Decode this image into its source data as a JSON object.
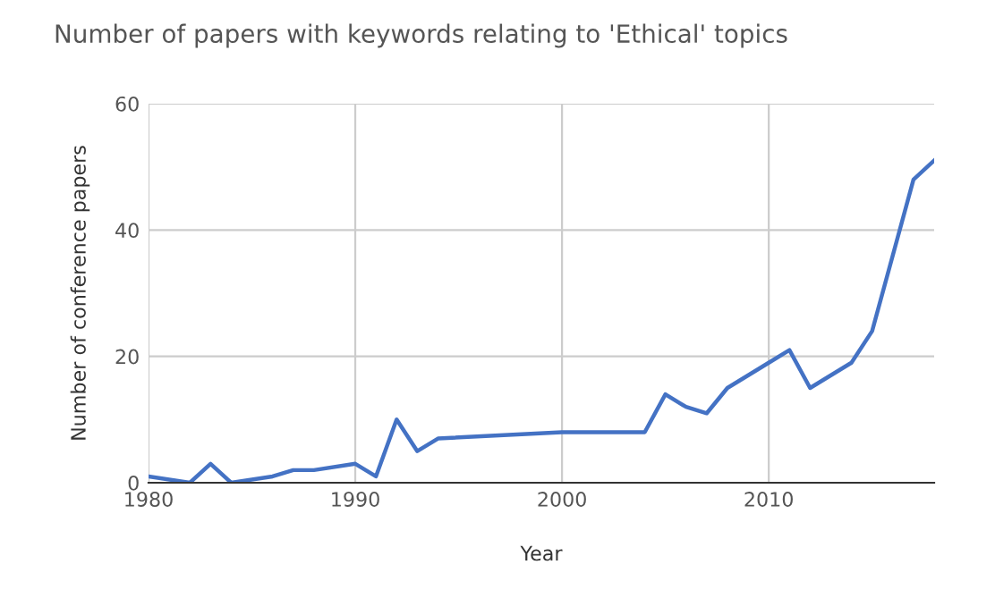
{
  "chart_data": {
    "type": "line",
    "title": "Number of papers with keywords relating to 'Ethical' topics",
    "xlabel": "Year",
    "ylabel": "Number of conference papers",
    "x": [
      1980,
      1982,
      1983,
      1984,
      1986,
      1987,
      1988,
      1990,
      1991,
      1992,
      1993,
      1994,
      2000,
      2004,
      2005,
      2006,
      2007,
      2008,
      2010,
      2011,
      2012,
      2014,
      2015,
      2017,
      2018
    ],
    "series": [
      {
        "color": "#4472c4",
        "values": [
          1,
          0,
          3,
          0,
          1,
          2,
          2,
          3,
          1,
          10,
          5,
          7,
          8,
          8,
          14,
          12,
          11,
          15,
          19,
          21,
          15,
          19,
          24,
          48,
          51
        ]
      }
    ],
    "xlim": [
      1980,
      2018
    ],
    "xticks": [
      1980,
      1990,
      2000,
      2010
    ],
    "ylim": [
      0,
      60
    ],
    "yticks": [
      0,
      20,
      40,
      60
    ],
    "grid": true
  }
}
